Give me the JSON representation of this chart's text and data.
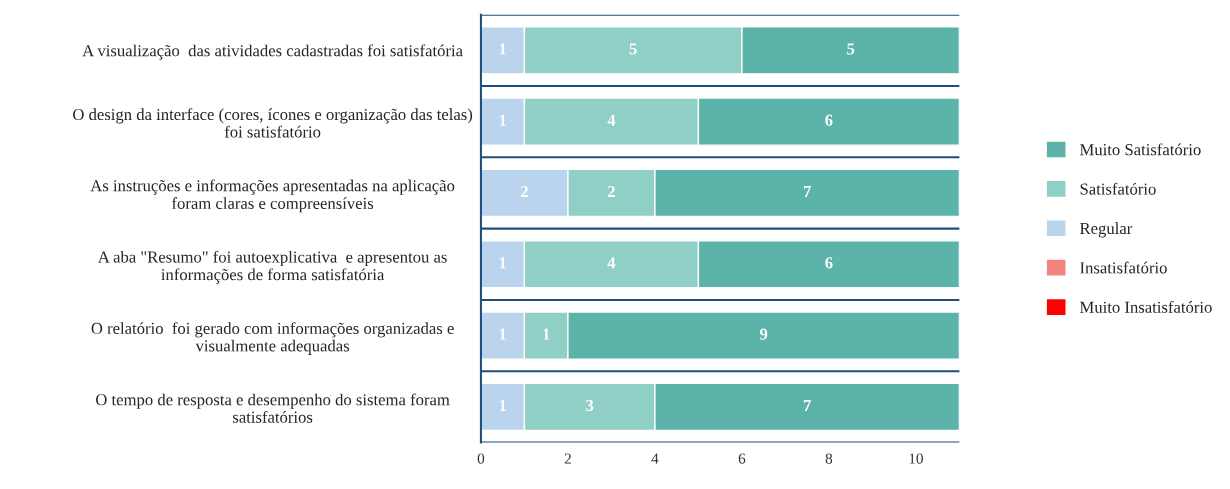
{
  "chart_data": {
    "type": "bar",
    "orientation": "horizontal",
    "stacked": true,
    "categories": [
      "A visualização  das atividades cadastradas foi satisfatória",
      "O design da interface (cores, ícones e organização das telas)\nfoi satisfatório",
      "As instruções e informações apresentadas na aplicação\nforam claras e compreensíveis",
      "A aba \"Resumo\" foi autoexplicativa  e apresentou as\ninformações de forma satisfatória",
      "O relatório  foi gerado com informações organizadas e\nvisualmente adequadas",
      "O tempo de resposta e desempenho do sistema foram\nsatisfatórios"
    ],
    "series": [
      {
        "name": "Muito Insatisfatório",
        "color": "#ff0000",
        "values": [
          0,
          0,
          0,
          0,
          0,
          0
        ],
        "value_labels": [
          null,
          null,
          null,
          null,
          null,
          null
        ]
      },
      {
        "name": "Insatisfatório",
        "color": "#f28482",
        "values": [
          0,
          0,
          0,
          0,
          0,
          0
        ],
        "value_labels": [
          null,
          null,
          null,
          null,
          null,
          null
        ]
      },
      {
        "name": "Regular",
        "color": "#bad4ee",
        "values": [
          1,
          1,
          2,
          1,
          1,
          1
        ],
        "value_labels": [
          "1",
          "1",
          "2",
          "1",
          "1",
          "1"
        ]
      },
      {
        "name": "Satisfatório",
        "color": "#90cfc6",
        "values": [
          5,
          4,
          2,
          4,
          1,
          3
        ],
        "value_labels": [
          "5",
          "4",
          "2",
          "4",
          "1",
          "3"
        ]
      },
      {
        "name": "Muito Satisfatório",
        "color": "#5bb3a9",
        "values": [
          5,
          6,
          7,
          6,
          9,
          7
        ],
        "value_labels": [
          "5",
          "6",
          "7",
          "6",
          "9",
          "7"
        ]
      }
    ],
    "xlim": [
      0,
      11
    ],
    "xticks": [
      0,
      2,
      4,
      6,
      8,
      10
    ],
    "grid": "y",
    "legend": "right"
  }
}
